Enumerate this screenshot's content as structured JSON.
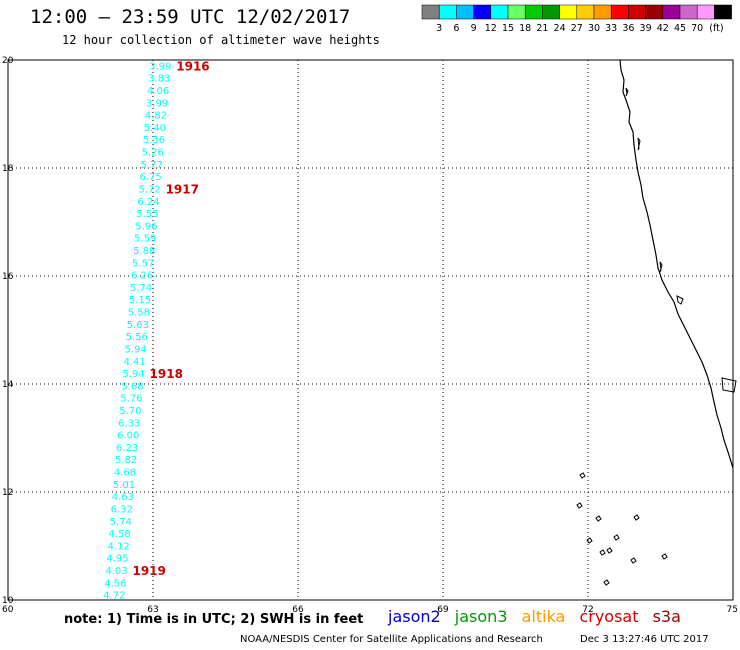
{
  "title": "12:00 – 23:59 UTC 12/02/2017",
  "subtitle": "12 hour collection of altimeter wave heights",
  "legend": {
    "colors": [
      "#808080",
      "#00ffff",
      "#00bfff",
      "#0000ff",
      "#00ffff",
      "#66ff66",
      "#00cc00",
      "#009900",
      "#ffff00",
      "#ffcc00",
      "#ff9900",
      "#ff0000",
      "#cc0000",
      "#990000",
      "#990099",
      "#cc66cc",
      "#ff99ff",
      "#000000"
    ],
    "labels": [
      "3",
      "6",
      "9",
      "12",
      "15",
      "18",
      "21",
      "24",
      "27",
      "30",
      "33",
      "36",
      "39",
      "42",
      "45",
      "70",
      "(ft)"
    ]
  },
  "note": "note: 1) Time is in UTC; 2) SWH is in feet",
  "satellites": [
    {
      "name": "jason2",
      "color": "#0000cc"
    },
    {
      "name": "jason3",
      "color": "#009900"
    },
    {
      "name": "altika",
      "color": "#ff9900"
    },
    {
      "name": "cryosat",
      "color": "#cc0000"
    },
    {
      "name": "s3a",
      "color": "#990000"
    }
  ],
  "footer": {
    "credit": "NOAA/NESDIS Center for Satellite Applications and Research",
    "timestamp": "Dec  3 13:27:46 UTC 2017"
  },
  "chart_data": {
    "type": "scatter",
    "x_ticks": [
      "60",
      "63",
      "66",
      "69",
      "72",
      "75"
    ],
    "y_ticks": [
      "10",
      "12",
      "14",
      "16",
      "18",
      "20"
    ],
    "xlim": [
      60,
      75
    ],
    "ylim": [
      10,
      20
    ],
    "grid": true,
    "point_color": "#00ffff",
    "time_label_color": "#cc0000",
    "track": {
      "lon_start": 63.15,
      "lat_start": 19.9,
      "lon_end": 62.2,
      "lat_end": 10.1,
      "swh": [
        "3.99",
        "3.83",
        "4.06",
        "3.99",
        "4.82",
        "5.40",
        "5.36",
        "5.26",
        "5.77",
        "6.75",
        "5.72",
        "6.24",
        "5.55",
        "5.96",
        "5.59",
        "5.88",
        "5.57",
        "6.26",
        "5.74",
        "5.15",
        "5.58",
        "5.63",
        "5.56",
        "5.94",
        "4.41",
        "5.94",
        "5.68",
        "5.76",
        "5.70",
        "6.33",
        "6.00",
        "6.23",
        "5.82",
        "4.68",
        "5.01",
        "4.63",
        "6.32",
        "5.74",
        "4.58",
        "4.12",
        "4.95",
        "4.03",
        "4.56",
        "4.72"
      ]
    },
    "time_labels": [
      {
        "text": "1916",
        "index": 0
      },
      {
        "text": "1917",
        "index": 10
      },
      {
        "text": "1918",
        "index": 25
      },
      {
        "text": "1919",
        "index": 41
      }
    ]
  }
}
